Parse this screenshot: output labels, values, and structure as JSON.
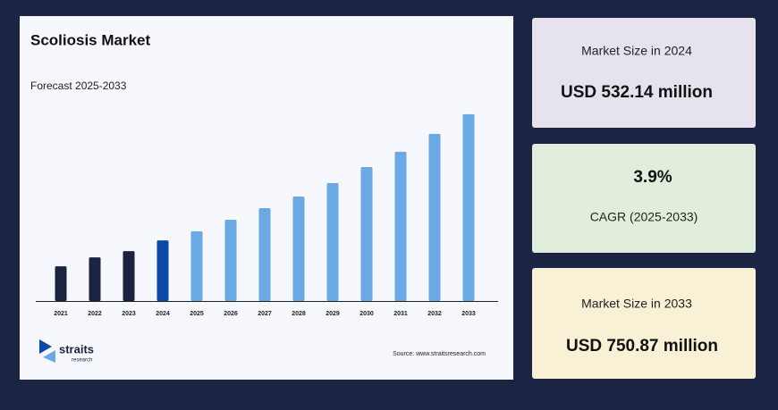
{
  "chart_data": {
    "type": "bar",
    "title": "Scoliosis Market",
    "subtitle": "Forecast 2025-2033",
    "categories": [
      "2021",
      "2022",
      "2023",
      "2024",
      "2025",
      "2026",
      "2027",
      "2028",
      "2029",
      "2030",
      "2031",
      "2032",
      "2033"
    ],
    "values": [
      487.2,
      502.7,
      513.5,
      532.14,
      547.7,
      567.8,
      588.0,
      608.2,
      631.4,
      659.3,
      685.7,
      716.7,
      750.87
    ],
    "colors": [
      "#1a2340",
      "#1a2340",
      "#1a2340",
      "#0b4aa8",
      "#6aa9e4",
      "#6aa9e4",
      "#6aa9e4",
      "#6aa9e4",
      "#6aa9e4",
      "#6aa9e4",
      "#6aa9e4",
      "#6aa9e4",
      "#6aa9e4"
    ],
    "ylim": [
      427,
      780
    ],
    "source": "Source: www.straitsresearch.com"
  },
  "logo": {
    "name": "straits",
    "tagline": "research"
  },
  "cards": [
    {
      "label": "Market Size in 2024",
      "value": "USD 532.14 million"
    },
    {
      "value": "3.9%",
      "label": "CAGR (2025-2033)"
    },
    {
      "label": "Market Size in 2033",
      "value": "USD 750.87 million"
    }
  ]
}
